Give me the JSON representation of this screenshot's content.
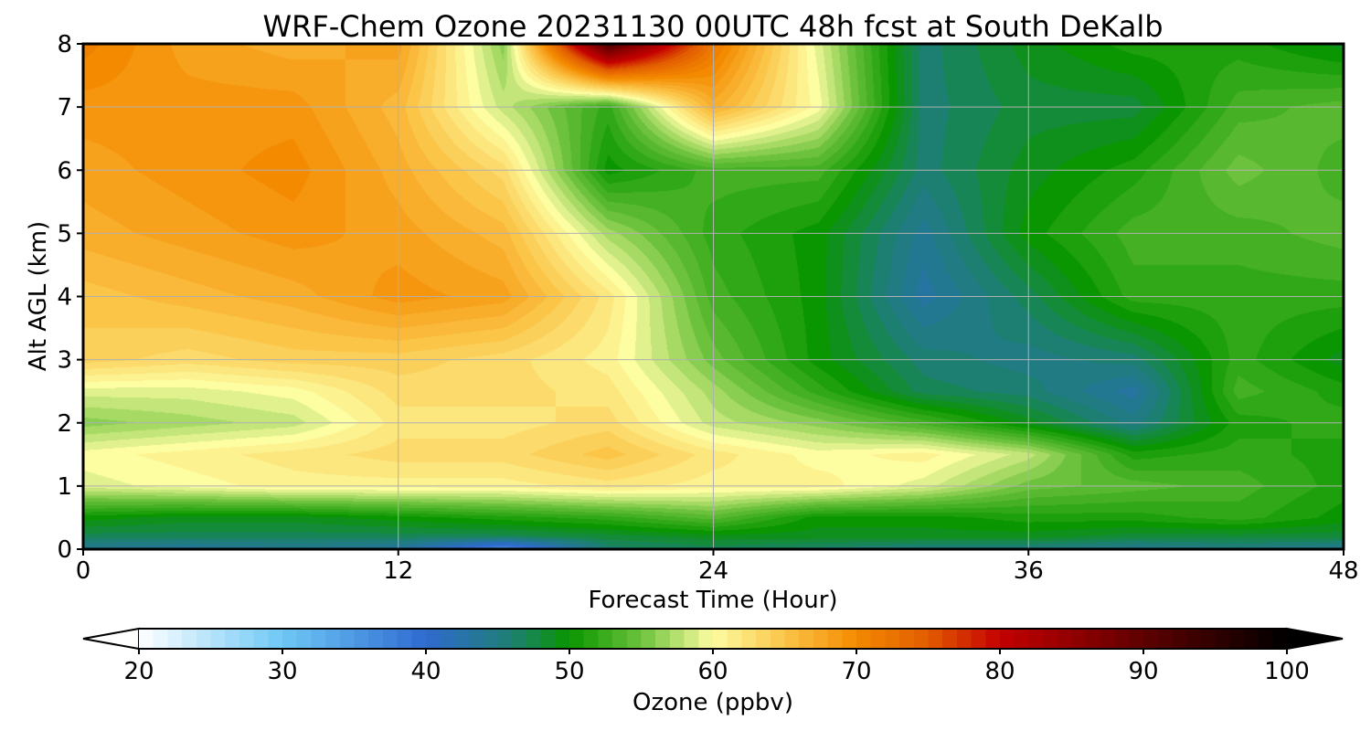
{
  "chart_data": {
    "type": "heatmap",
    "title": "WRF-Chem Ozone  20231130 00UTC 48h fcst at South DeKalb",
    "xlabel": "Forecast Time (Hour)",
    "ylabel": "Alt AGL (km)",
    "xlim": [
      0,
      48
    ],
    "ylim": [
      0,
      8
    ],
    "x_ticks": [
      "0",
      "12",
      "24",
      "36",
      "48"
    ],
    "y_ticks": [
      "0",
      "1",
      "2",
      "3",
      "4",
      "5",
      "6",
      "7",
      "8"
    ],
    "grid": true,
    "x": [
      0,
      4,
      8,
      12,
      16,
      20,
      24,
      28,
      32,
      36,
      40,
      44,
      48
    ],
    "y": [
      0,
      0.2,
      0.5,
      1,
      1.5,
      2,
      2.5,
      3,
      4,
      5,
      6,
      7,
      8
    ],
    "z": [
      [
        44,
        43,
        44,
        43,
        36,
        46,
        47,
        46,
        45,
        45,
        44,
        45,
        44
      ],
      [
        47,
        47,
        47,
        47,
        47,
        48,
        49,
        49,
        49,
        49,
        48,
        48,
        48
      ],
      [
        50,
        49,
        49,
        50,
        51,
        52,
        54,
        50,
        50,
        51,
        51,
        52,
        50
      ],
      [
        59,
        60,
        61,
        61,
        61,
        62,
        61,
        61,
        59,
        55,
        54,
        53,
        51
      ],
      [
        60,
        61,
        62,
        63,
        63,
        65,
        62,
        60,
        61,
        58,
        51,
        52,
        51
      ],
      [
        56,
        57,
        58,
        62,
        62,
        63,
        58,
        56,
        53,
        49,
        45,
        51,
        52
      ],
      [
        59,
        59,
        60,
        63,
        63,
        62,
        57,
        52,
        47,
        46,
        43,
        53,
        51
      ],
      [
        64,
        63,
        64,
        64,
        63,
        61,
        55,
        50,
        46,
        45,
        46,
        52,
        49
      ],
      [
        65,
        66,
        67,
        69,
        68,
        62,
        53,
        50,
        43,
        47,
        52,
        52,
        52
      ],
      [
        67,
        68,
        69,
        68,
        66,
        57,
        52,
        50,
        44,
        50,
        53,
        53,
        54
      ],
      [
        68,
        69,
        70,
        67,
        63,
        50,
        53,
        53,
        46,
        49,
        51,
        55,
        53
      ],
      [
        69,
        69,
        69,
        66,
        58,
        52,
        67,
        60,
        46,
        48,
        48,
        53,
        54
      ],
      [
        71,
        68,
        67,
        68,
        56,
        92,
        72,
        59,
        46,
        49,
        51,
        51,
        49
      ]
    ],
    "colorbar": {
      "label": "Ozone  (ppbv)",
      "min": 20,
      "max": 100,
      "extend": "both",
      "ticks": [
        "20",
        "30",
        "40",
        "50",
        "60",
        "70",
        "80",
        "90",
        "100"
      ],
      "stops": [
        {
          "v": 20,
          "c": "#ffffff"
        },
        {
          "v": 30,
          "c": "#6ec8f5"
        },
        {
          "v": 40,
          "c": "#2f6ad0"
        },
        {
          "v": 46,
          "c": "#1d7f72"
        },
        {
          "v": 50,
          "c": "#0a9600"
        },
        {
          "v": 55,
          "c": "#6cc23c"
        },
        {
          "v": 60,
          "c": "#fdfda2"
        },
        {
          "v": 65,
          "c": "#fbc548"
        },
        {
          "v": 70,
          "c": "#f48a00"
        },
        {
          "v": 75,
          "c": "#e25c00"
        },
        {
          "v": 80,
          "c": "#c40000"
        },
        {
          "v": 90,
          "c": "#5e0000"
        },
        {
          "v": 100,
          "c": "#000000"
        }
      ]
    }
  }
}
